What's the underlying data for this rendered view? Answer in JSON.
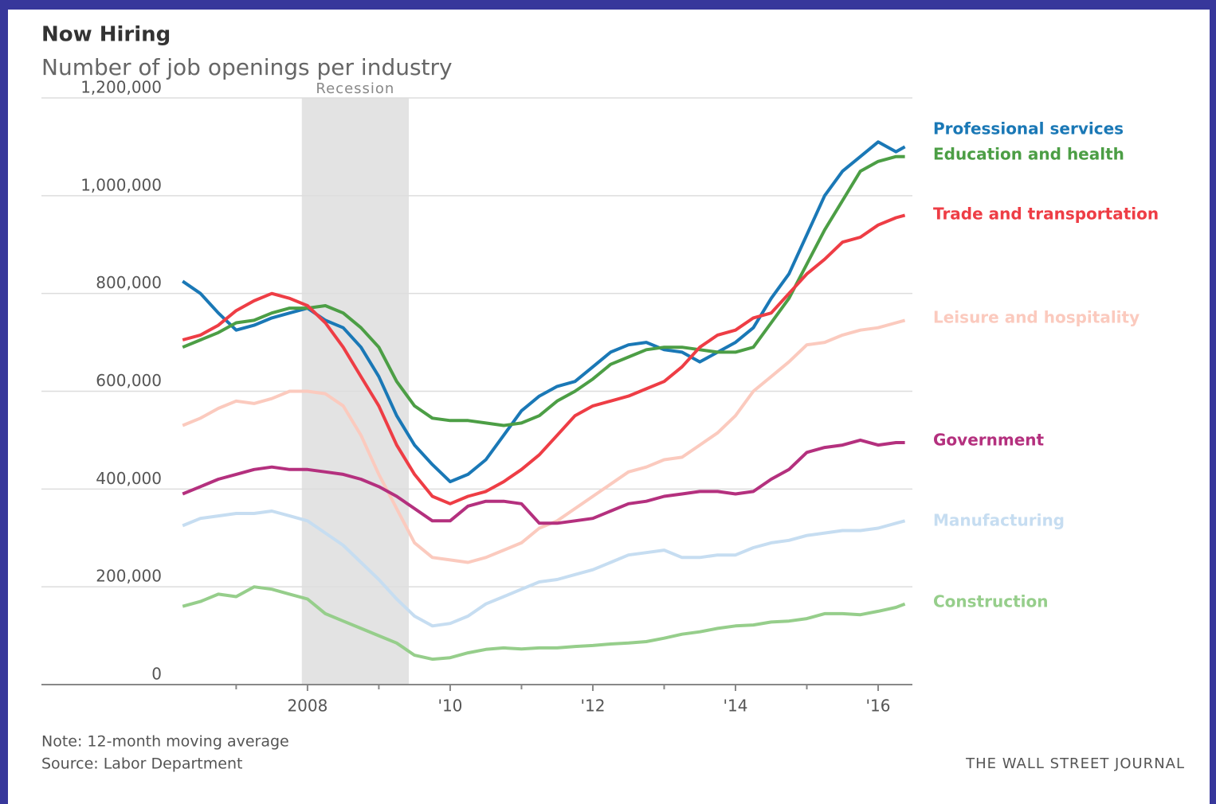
{
  "chart_data": {
    "type": "line",
    "title": "Now Hiring",
    "subtitle": "Number of job openings per industry",
    "note": "Note: 12-month moving average",
    "source": "Source: Labor Department",
    "credit": "THE WALL STREET JOURNAL",
    "shaded_span": {
      "label": "Recession",
      "x": [
        2007.92,
        2009.42
      ]
    },
    "xlim": [
      2004.27,
      2016.48
    ],
    "xticks": [
      2008,
      {
        "value": 2010,
        "label": "'10"
      },
      {
        "value": 2012,
        "label": "'12"
      },
      {
        "value": 2014,
        "label": "'14"
      },
      {
        "value": 2016,
        "label": "'16"
      }
    ],
    "xminor_ticks": [
      2007,
      2009,
      2011,
      2013,
      2015
    ],
    "ylim": [
      0,
      1200000
    ],
    "yticks": [
      0,
      {
        "value": 200000,
        "label": "200,000"
      },
      {
        "value": 400000,
        "label": "400,000"
      },
      {
        "value": 600000,
        "label": "600,000"
      },
      {
        "value": 800000,
        "label": "800,000"
      },
      {
        "value": 1000000,
        "label": "1,000,000"
      },
      {
        "value": 1200000,
        "label": "1,200,000"
      }
    ],
    "grid": true,
    "x": [
      2006.25,
      2006.5,
      2006.75,
      2007,
      2007.25,
      2007.5,
      2007.75,
      2008,
      2008.25,
      2008.5,
      2008.75,
      2009,
      2009.25,
      2009.5,
      2009.75,
      2010,
      2010.25,
      2010.5,
      2010.75,
      2011,
      2011.25,
      2011.5,
      2011.75,
      2012,
      2012.25,
      2012.5,
      2012.75,
      2013,
      2013.25,
      2013.5,
      2013.75,
      2014,
      2014.25,
      2014.5,
      2014.75,
      2015,
      2015.25,
      2015.5,
      2015.75,
      2016,
      2016.25,
      2016.375
    ],
    "series": [
      {
        "name": "Professional services",
        "color": "#1a78b6",
        "values": [
          825000,
          800000,
          760000,
          725000,
          735000,
          750000,
          760000,
          770000,
          745000,
          730000,
          690000,
          630000,
          550000,
          490000,
          450000,
          415000,
          430000,
          460000,
          510000,
          560000,
          590000,
          610000,
          620000,
          650000,
          680000,
          695000,
          700000,
          685000,
          680000,
          660000,
          680000,
          700000,
          730000,
          790000,
          840000,
          920000,
          1000000,
          1050000,
          1080000,
          1110000,
          1090000,
          1100000
        ]
      },
      {
        "name": "Education and health",
        "color": "#4c9e45",
        "values": [
          690000,
          705000,
          720000,
          740000,
          745000,
          760000,
          770000,
          770000,
          775000,
          760000,
          730000,
          690000,
          620000,
          570000,
          545000,
          540000,
          540000,
          535000,
          530000,
          535000,
          550000,
          580000,
          600000,
          625000,
          655000,
          670000,
          685000,
          690000,
          690000,
          685000,
          680000,
          680000,
          690000,
          740000,
          790000,
          860000,
          930000,
          990000,
          1050000,
          1070000,
          1080000,
          1080000
        ]
      },
      {
        "name": "Trade and transportation",
        "color": "#ee3d45",
        "values": [
          705000,
          715000,
          735000,
          765000,
          785000,
          800000,
          790000,
          775000,
          740000,
          690000,
          630000,
          570000,
          490000,
          430000,
          385000,
          370000,
          385000,
          395000,
          415000,
          440000,
          470000,
          510000,
          550000,
          570000,
          580000,
          590000,
          605000,
          620000,
          650000,
          690000,
          715000,
          725000,
          750000,
          760000,
          800000,
          840000,
          870000,
          905000,
          915000,
          940000,
          955000,
          960000
        ]
      },
      {
        "name": "Leisure and hospitality",
        "color": "#fbcabe",
        "values": [
          530000,
          545000,
          565000,
          580000,
          575000,
          585000,
          600000,
          600000,
          595000,
          570000,
          510000,
          430000,
          360000,
          290000,
          260000,
          255000,
          250000,
          260000,
          275000,
          290000,
          320000,
          335000,
          360000,
          385000,
          410000,
          435000,
          445000,
          460000,
          465000,
          490000,
          515000,
          550000,
          600000,
          630000,
          660000,
          695000,
          700000,
          715000,
          725000,
          730000,
          740000,
          745000
        ]
      },
      {
        "name": "Government",
        "color": "#b4307e",
        "values": [
          390000,
          405000,
          420000,
          430000,
          440000,
          445000,
          440000,
          440000,
          435000,
          430000,
          420000,
          405000,
          385000,
          360000,
          335000,
          335000,
          365000,
          375000,
          375000,
          370000,
          330000,
          330000,
          335000,
          340000,
          355000,
          370000,
          375000,
          385000,
          390000,
          395000,
          395000,
          390000,
          395000,
          420000,
          440000,
          475000,
          485000,
          490000,
          500000,
          490000,
          495000,
          495000
        ]
      },
      {
        "name": "Manufacturing",
        "color": "#c6ddf1",
        "values": [
          325000,
          340000,
          345000,
          350000,
          350000,
          355000,
          345000,
          335000,
          310000,
          285000,
          250000,
          215000,
          175000,
          140000,
          120000,
          125000,
          140000,
          165000,
          180000,
          195000,
          210000,
          215000,
          225000,
          235000,
          250000,
          265000,
          270000,
          275000,
          260000,
          260000,
          265000,
          265000,
          280000,
          290000,
          295000,
          305000,
          310000,
          315000,
          315000,
          320000,
          330000,
          335000
        ]
      },
      {
        "name": "Construction",
        "color": "#96ce8b",
        "values": [
          160000,
          170000,
          185000,
          180000,
          200000,
          195000,
          185000,
          175000,
          145000,
          130000,
          115000,
          100000,
          85000,
          60000,
          52000,
          55000,
          65000,
          72000,
          75000,
          73000,
          75000,
          75000,
          78000,
          80000,
          83000,
          85000,
          88000,
          95000,
          103000,
          108000,
          115000,
          120000,
          122000,
          128000,
          130000,
          135000,
          145000,
          145000,
          143000,
          150000,
          158000,
          165000
        ]
      }
    ]
  }
}
